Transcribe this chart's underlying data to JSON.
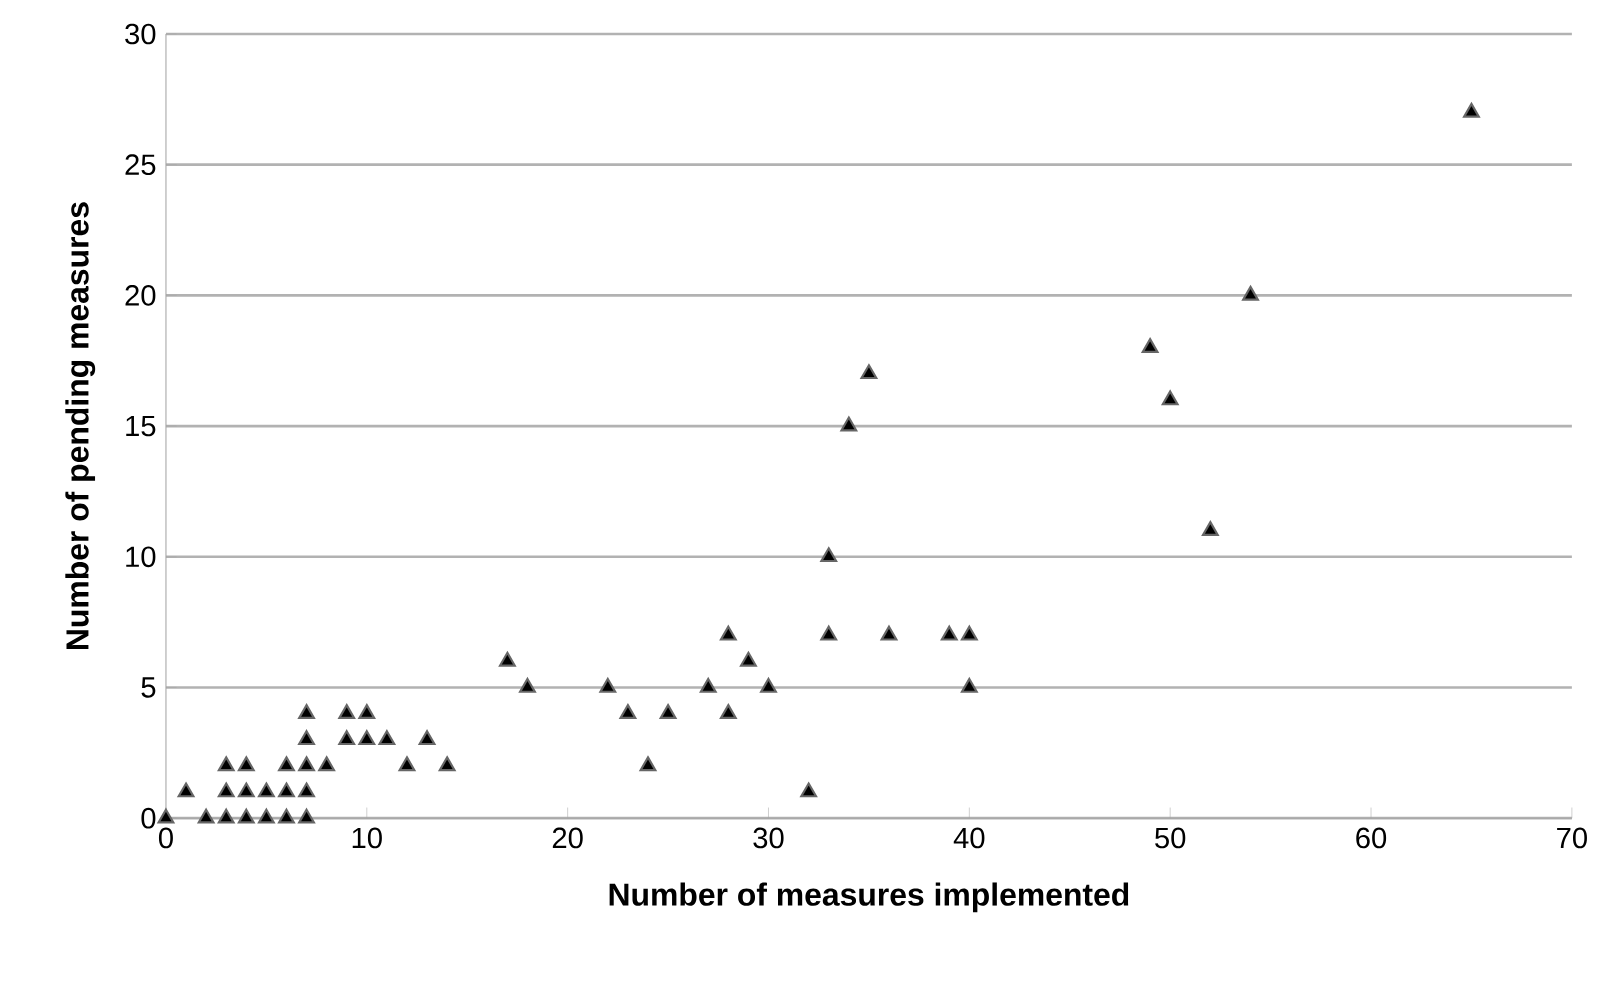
{
  "chart_data": {
    "type": "scatter",
    "xlabel": "Number of measures implemented",
    "ylabel": "Number of pending measures",
    "x": [
      0,
      1,
      2,
      3,
      3,
      3,
      4,
      4,
      4,
      5,
      5,
      6,
      6,
      6,
      7,
      7,
      7,
      7,
      7,
      8,
      9,
      9,
      10,
      10,
      11,
      12,
      13,
      14,
      17,
      18,
      22,
      23,
      24,
      25,
      27,
      28,
      28,
      29,
      30,
      32,
      33,
      33,
      34,
      35,
      36,
      39,
      40,
      40,
      49,
      50,
      52,
      54,
      65
    ],
    "series": [
      {
        "color": "#000000",
        "values": [
          0,
          1,
          0,
          0,
          1,
          2,
          0,
          1,
          2,
          0,
          1,
          0,
          1,
          2,
          0,
          1,
          2,
          3,
          4,
          2,
          3,
          4,
          3,
          4,
          3,
          2,
          3,
          2,
          6,
          5,
          5,
          4,
          2,
          4,
          5,
          7,
          4,
          6,
          5,
          1,
          10,
          7,
          15,
          17,
          7,
          7,
          7,
          5,
          18,
          16,
          11,
          20,
          27
        ]
      }
    ],
    "xlim": [
      0,
      70
    ],
    "ylim": [
      0,
      30
    ],
    "xticks": [
      0,
      10,
      20,
      30,
      40,
      50,
      60,
      70
    ],
    "yticks": [
      0,
      5,
      10,
      15,
      20,
      25,
      30
    ],
    "grid": "y",
    "marker": "triangle"
  }
}
